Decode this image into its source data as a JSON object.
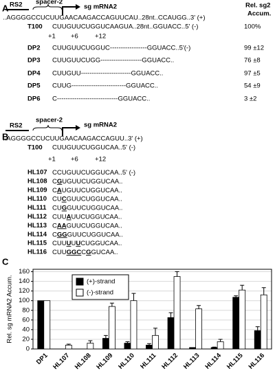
{
  "panel_a": {
    "label": "A",
    "rs2": "RS2",
    "spacer": "spacer-2",
    "sg": "sg mRNA2",
    "header": [
      "Rel. sg2",
      "Accum."
    ],
    "plus_strand": "..AGGGGCCUCUUGAACAAGACCAGUUCAU..28nt..CCAUGG..3' (+)",
    "template": {
      "name": "T100",
      "seq": "CUUGUUCUGGUCAAGUA..28nt..GGUACC..5' (-)",
      "accum": "100%"
    },
    "positions": [
      "+1",
      "+6",
      "+12"
    ],
    "rows": [
      {
        "name": "DP2",
        "seq": "CUUGUUCUGGUC-----------------GGUACC..5'(-)",
        "accum": "99 ±12"
      },
      {
        "name": "DP3",
        "seq": "CUUGUUCUGG-------------------GGUACC..",
        "accum": "76 ±8"
      },
      {
        "name": "DP4",
        "seq": "CUUGUU-----------------------GGUACC..",
        "accum": "97 ±5"
      },
      {
        "name": "DP5",
        "seq": "CUUG-------------------------GGUACC..",
        "accum": "54 ±9"
      },
      {
        "name": "DP6",
        "seq": "C----------------------------GGUACC..",
        "accum": "3 ±2"
      }
    ]
  },
  "panel_b": {
    "label": "B",
    "rs2": "RS2",
    "spacer": "spacer-2",
    "sg": "sg mRNA2",
    "plus_strand": "..AGGGGCCUCUUGAACAAGACCAGUU..3' (+)",
    "template": {
      "name": "T100",
      "seq": "CUUGUUCUGGUCAA..5' (-)"
    },
    "positions": [
      "+1",
      "+6",
      "+12"
    ],
    "rows": [
      {
        "name": "HL107",
        "seq": [
          "CCUGUUCUGGUCAA..5' (-)"
        ]
      },
      {
        "name": "HL108",
        "seq": [
          "C",
          "G",
          "UGUUCUGGUCAA.."
        ]
      },
      {
        "name": "HL109",
        "seq": [
          "C",
          "A",
          "UGUUCUGGUCAA.."
        ]
      },
      {
        "name": "HL110",
        "seq": [
          "CU",
          "C",
          "GUUCUGGUCAA.."
        ]
      },
      {
        "name": "HL111",
        "seq": [
          "CU",
          "G",
          "GUUCUGGUCAA.."
        ]
      },
      {
        "name": "HL112",
        "seq": [
          "CUU",
          "A",
          "UUCUGGUCAA.."
        ]
      },
      {
        "name": "HL113",
        "seq": [
          "C",
          "AA",
          "GUUCUGGUCAA.."
        ]
      },
      {
        "name": "HL114",
        "seq": [
          "C",
          "GG",
          "GUUCUGGUCAA.."
        ]
      },
      {
        "name": "HL115",
        "seq": [
          "CUU",
          "U",
          "U",
          "U",
          "CUGGUCAA.."
        ]
      },
      {
        "name": "HL116",
        "seq": [
          "CUU",
          "GGC",
          "C",
          "G",
          "GUCAA.."
        ]
      }
    ]
  },
  "panel_c": {
    "label": "C"
  },
  "chart_data": {
    "type": "bar",
    "y_label": "Rel. sg mRNA2 Accum.",
    "categories": [
      "DP1",
      "HL107",
      "HL108",
      "HL109",
      "HL110",
      "HL111",
      "HL112",
      "HL113",
      "HL114",
      "HL115",
      "HL116"
    ],
    "series": [
      {
        "name": "(+)-strand",
        "color": "#000000",
        "values": [
          100,
          0,
          0,
          22,
          12,
          8,
          65,
          3,
          3,
          107,
          38
        ],
        "errors": [
          0,
          0,
          0,
          6,
          3,
          3,
          10,
          0,
          1,
          3,
          8
        ]
      },
      {
        "name": "(-)-strand",
        "color": "#ffffff",
        "values": [
          100,
          8,
          12,
          88,
          100,
          28,
          150,
          83,
          15,
          122,
          112
        ],
        "errors": [
          0,
          2,
          5,
          7,
          15,
          15,
          10,
          7,
          5,
          10,
          15
        ]
      }
    ],
    "ylim": [
      0,
      165
    ],
    "yticks": [
      0,
      20,
      40,
      60,
      80,
      100,
      120,
      140,
      160
    ],
    "grid": true
  }
}
